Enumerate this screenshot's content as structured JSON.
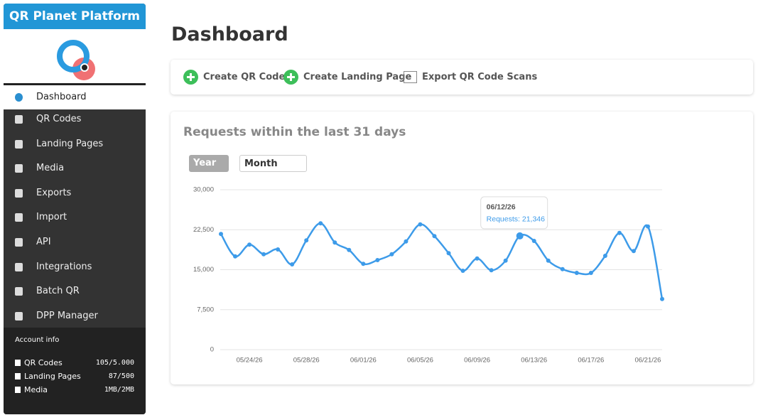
{
  "sidebar": {
    "title": "QR Planet Platform",
    "nav": [
      "Dashboard",
      "QR Codes",
      "Landing Pages",
      "Media",
      "Exports",
      "Import",
      "API",
      "Integrations",
      "Batch QR",
      "DPP Manager"
    ],
    "account": {
      "title": "Account info",
      "rows": [
        {
          "label": "QR Codes",
          "value": "105/5.000"
        },
        {
          "label": "Landing Pages",
          "value": "87/500"
        },
        {
          "label": "Media",
          "value": "1MB/2MB"
        }
      ]
    }
  },
  "header": {
    "title": "Dashboard"
  },
  "actions": [
    "Create QR Code",
    "Create Landing Page",
    "Export QR Code Scans"
  ],
  "panel": {
    "title": "Requests within the last 31 days",
    "selects": [
      "Year",
      "Month"
    ]
  },
  "chart_data": {
    "type": "line",
    "categories": [
      null,
      null,
      "05/24/26",
      null,
      null,
      null,
      "05/28/26",
      null,
      null,
      null,
      "06/01/26",
      null,
      null,
      null,
      "06/05/26",
      null,
      null,
      null,
      "06/09/26",
      null,
      null,
      null,
      "06/13/26",
      null,
      null,
      null,
      "06/17/26",
      null,
      null,
      null,
      "06/21/26",
      null
    ],
    "series": [
      {
        "name": "Requests",
        "color": "#3d9be9",
        "values": [
          21700,
          17500,
          19700,
          17900,
          18800,
          16000,
          20500,
          23700,
          20100,
          18700,
          16100,
          16800,
          17900,
          20300,
          23500,
          21300,
          18100,
          14800,
          17100,
          14900,
          16700,
          21346,
          20400,
          16700,
          15100,
          14400,
          14400,
          17600,
          21900,
          18500,
          23100,
          9500
        ]
      }
    ],
    "ylim": [
      0,
      30000
    ],
    "yticks": [
      0,
      {
        "value": 7500,
        "label": "7,500"
      },
      {
        "value": 15000,
        "label": "15,000"
      },
      {
        "value": 22500,
        "label": "22,500"
      },
      {
        "value": 30000,
        "label": "30,000"
      }
    ],
    "grid": true,
    "tooltip": {
      "index": 21,
      "title": "06/12/26",
      "text": "Requests: 21,346"
    }
  }
}
